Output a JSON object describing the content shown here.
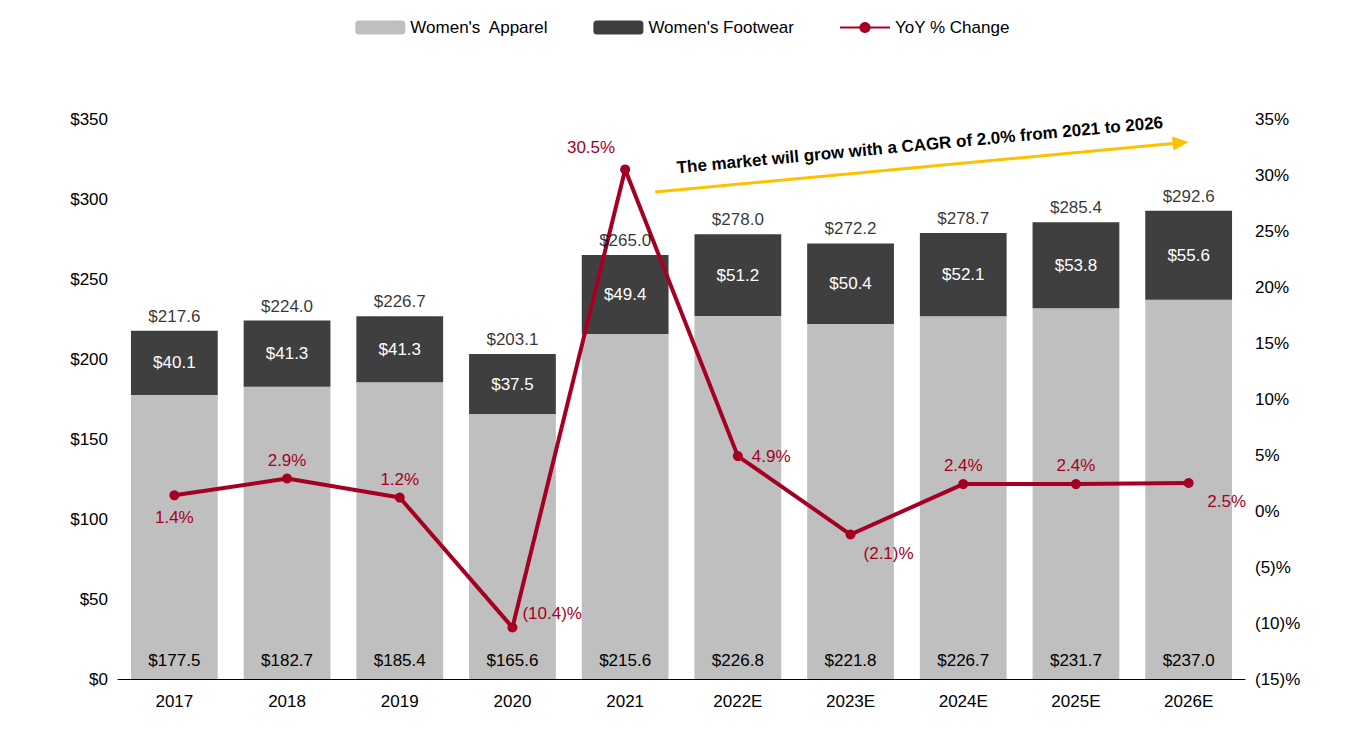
{
  "chart_data": {
    "type": "bar",
    "stacked": true,
    "data_labels": true,
    "grid": false,
    "legend": "top",
    "categories": [
      "2017",
      "2018",
      "2019",
      "2020",
      "2021",
      "2022E",
      "2023E",
      "2024E",
      "2025E",
      "2026E"
    ],
    "series": [
      {
        "name": "Women's  Apparel",
        "color": "#bfbfbf",
        "values": [
          177.5,
          182.7,
          185.4,
          165.6,
          215.6,
          226.8,
          221.8,
          226.7,
          231.7,
          237.0
        ],
        "value_labels": [
          "$177.5",
          "$182.7",
          "$185.4",
          "$165.6",
          "$215.6",
          "$226.8",
          "$221.8",
          "$226.7",
          "$231.7",
          "$237.0"
        ]
      },
      {
        "name": "Women's Footwear",
        "color": "#3f3f3f",
        "values": [
          40.1,
          41.3,
          41.3,
          37.5,
          49.4,
          51.2,
          50.4,
          52.1,
          53.8,
          55.6
        ],
        "value_labels": [
          "$40.1",
          "$41.3",
          "$41.3",
          "$37.5",
          "$49.4",
          "$51.2",
          "$50.4",
          "$52.1",
          "$53.8",
          "$55.6"
        ]
      },
      {
        "name": "YoY % Change",
        "type": "line",
        "axis": "y2",
        "color": "#a50021",
        "marker": "circle",
        "values": [
          1.4,
          2.9,
          1.2,
          -10.4,
          30.5,
          4.9,
          -2.1,
          2.4,
          2.4,
          2.5
        ],
        "value_labels": [
          "1.4%",
          "2.9%",
          "1.2%",
          "(10.4)%",
          "30.5%",
          "4.9%",
          "(2.1)%",
          "2.4%",
          "2.4%",
          "2.5%"
        ]
      }
    ],
    "totals": {
      "values": [
        217.6,
        224.0,
        226.7,
        203.1,
        265.0,
        278.0,
        272.2,
        278.7,
        285.4,
        292.6
      ],
      "value_labels": [
        "$217.6",
        "$224.0",
        "$226.7",
        "$203.1",
        "$265.0",
        "$278.0",
        "$272.2",
        "$278.7",
        "$285.4",
        "$292.6"
      ]
    },
    "annotations": [
      {
        "text": "The market will grow with a CAGR of 2.0% from 2021 to 2026",
        "from": "2021",
        "to": "2026E",
        "color": "#ffc000"
      }
    ],
    "ylim": [
      0,
      350
    ],
    "yticks": [
      {
        "value": 0,
        "label": "$0"
      },
      {
        "value": 50,
        "label": "$50"
      },
      {
        "value": 100,
        "label": "$100"
      },
      {
        "value": 150,
        "label": "$150"
      },
      {
        "value": 200,
        "label": "$200"
      },
      {
        "value": 250,
        "label": "$250"
      },
      {
        "value": 300,
        "label": "$300"
      },
      {
        "value": 350,
        "label": "$350"
      }
    ],
    "y2lim": [
      -15,
      35
    ],
    "y2ticks": [
      {
        "value": -15,
        "label": "(15)%"
      },
      {
        "value": -10,
        "label": "(10)%"
      },
      {
        "value": -5,
        "label": "(5)%"
      },
      {
        "value": 0,
        "label": "0%"
      },
      {
        "value": 5,
        "label": "5%"
      },
      {
        "value": 10,
        "label": "10%"
      },
      {
        "value": 15,
        "label": "15%"
      },
      {
        "value": 20,
        "label": "20%"
      },
      {
        "value": 25,
        "label": "25%"
      },
      {
        "value": 30,
        "label": "30%"
      },
      {
        "value": 35,
        "label": "35%"
      }
    ]
  }
}
